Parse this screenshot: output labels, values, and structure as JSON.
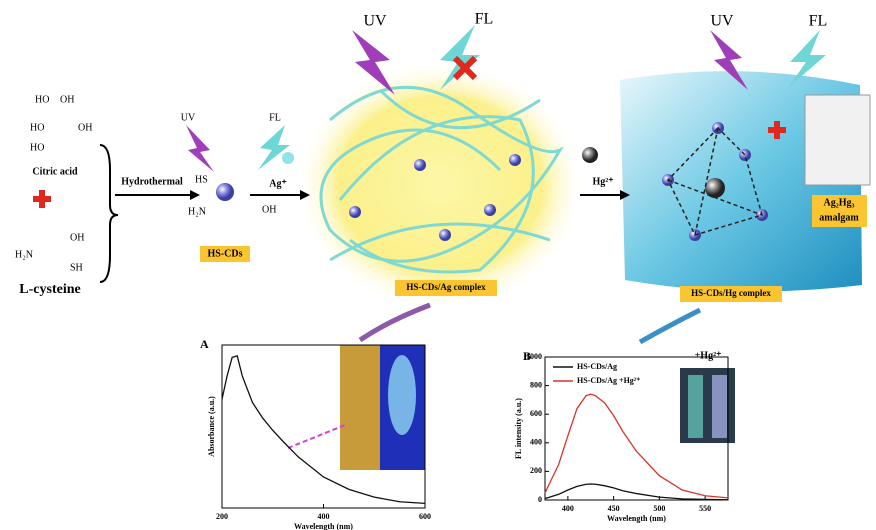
{
  "diagram": {
    "citric_acid": "Citric acid",
    "l_cysteine": "L-cysteine",
    "hydrothermal": "Hydrothermal",
    "hs_cds": "HS-CDs",
    "ag_ion": "Ag⁺",
    "hg_ion": "Hg²⁺",
    "ag_complex": "HS-CDs/Ag complex",
    "hg_complex": "HS-CDs/Hg complex",
    "uv": [
      "UV",
      "UV",
      "UV"
    ],
    "fl": [
      "FL",
      "FL",
      "FL"
    ],
    "amalgam": [
      "Ag₂Hg₃",
      "amalgam"
    ],
    "groups": [
      "HO",
      "OH",
      "HO",
      "OH",
      "HO",
      "OH",
      "H₂N",
      "SH",
      "HS",
      "H₂N",
      "OH"
    ],
    "photo_label": "+Hg²⁺"
  },
  "chart_data": [
    {
      "type": "line",
      "panel": "A",
      "x_label": "Wavelength (nm)",
      "y_label": "Absorbance (a.u.)",
      "x": [
        200,
        210,
        220,
        230,
        240,
        260,
        280,
        300,
        320,
        350,
        400,
        450,
        500,
        550,
        600
      ],
      "values": [
        0.7,
        0.85,
        0.97,
        0.98,
        0.85,
        0.68,
        0.58,
        0.5,
        0.43,
        0.33,
        0.2,
        0.12,
        0.07,
        0.04,
        0.03
      ],
      "color": "#111111",
      "xlim": [
        200,
        600
      ],
      "xticks": [
        200,
        400,
        600
      ],
      "ylim": [
        0,
        1.05
      ]
    },
    {
      "type": "line",
      "panel": "B",
      "x_label": "Wavelength (nm)",
      "y_label": "FL intensity (a.u.)",
      "x": [
        375,
        390,
        400,
        410,
        420,
        425,
        430,
        440,
        450,
        460,
        475,
        500,
        525,
        550,
        575
      ],
      "series": [
        {
          "name": "HS-CDs/Ag",
          "color": "#111111",
          "values": [
            10,
            40,
            70,
            95,
            110,
            112,
            110,
            100,
            85,
            65,
            45,
            20,
            8,
            4,
            2
          ]
        },
        {
          "name": "HS-CDs/Ag +Hg²⁺",
          "color": "#d9342b",
          "values": [
            50,
            250,
            450,
            640,
            730,
            740,
            730,
            680,
            590,
            480,
            340,
            170,
            70,
            30,
            15
          ]
        }
      ],
      "xlim": [
        375,
        575
      ],
      "xticks": [
        400,
        450,
        500,
        550
      ],
      "ylim": [
        0,
        1000
      ],
      "yticks": [
        0,
        200,
        400,
        600,
        800,
        1000
      ]
    }
  ]
}
